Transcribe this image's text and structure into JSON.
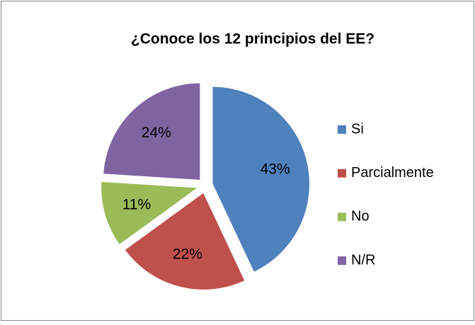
{
  "chart_data": {
    "type": "pie",
    "title": "¿Conoce los 12 principios del EE?",
    "categories": [
      "Si",
      "Parcialmente",
      "No",
      "N/R"
    ],
    "values": [
      43,
      22,
      11,
      24
    ],
    "value_labels": [
      "43%",
      "22%",
      "11%",
      "24%"
    ],
    "colors": [
      "#4f81bd",
      "#c0504d",
      "#9bbb59",
      "#8064a2"
    ],
    "legend": "right"
  }
}
